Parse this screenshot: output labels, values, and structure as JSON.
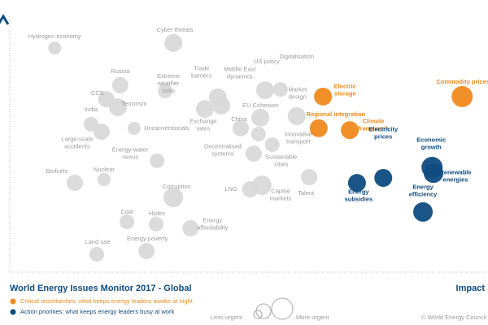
{
  "chart_data": {
    "type": "bubble",
    "title": "World Energy Issues Monitor 2017 - Global",
    "x_label": "Impact",
    "xlim": [
      0,
      100
    ],
    "ylim": [
      0,
      100
    ],
    "series": [
      {
        "color": "#d9d9d9",
        "label_color": "#9b9b9b",
        "labels": [
          "Hydrogen economy",
          "Cyber threats",
          "Russia",
          "CCS",
          "Terrorism",
          "Extreme\nweather\nrisks",
          "India",
          "Unconventionals",
          "Large-scale\naccidents",
          "Trade\nbarriers",
          "Middle East\ndynamics",
          "Exchange\nrates",
          "US policy",
          "Digitalisation",
          "EU Cohesion",
          "Market\ndesign",
          "China",
          "Innovative\ntransport",
          "Decentralised\nsystems",
          "Sustainable\ncities",
          "Energy-water\nnexus",
          "Biofuels",
          "Nuclear",
          "LNG",
          "Capital\nmarkets",
          "Talent",
          "Corruption",
          "Coal",
          "Hydro",
          "Energy\naffordability",
          "Energy poverty",
          "Land use"
        ],
        "x": [
          9.4,
          34.2,
          23.1,
          20.2,
          22.6,
          32.5,
          17.0,
          26.0,
          19.2,
          43.5,
          44.2,
          40.8,
          53.4,
          56.6,
          52.4,
          60.0,
          48.3,
          54.9,
          51.0,
          52.0,
          30.8,
          13.6,
          19.7,
          50.3,
          52.7,
          62.6,
          34.2,
          24.5,
          30.6,
          37.8,
          28.6,
          18.2
        ],
        "y": [
          84.9,
          86.8,
          70.8,
          65.5,
          62.5,
          68.6,
          56.0,
          54.5,
          53.2,
          66.2,
          63.1,
          61.8,
          68.9,
          69.2,
          58.5,
          59.1,
          54.5,
          48.3,
          44.9,
          52.3,
          42.2,
          33.8,
          35.1,
          31.4,
          32.9,
          36.0,
          28.3,
          19.1,
          18.2,
          16.6,
          8.0,
          6.8
        ],
        "size": [
          8,
          11,
          10,
          10,
          11,
          9,
          9,
          8,
          10,
          11,
          11,
          11,
          11,
          9,
          11,
          11,
          10,
          9,
          10,
          9,
          9,
          10,
          8,
          10,
          12,
          10,
          12,
          9,
          9,
          10,
          10,
          9
        ]
      },
      {
        "name": "Critical uncertainties: what keeps energy leaders awake at night",
        "color": "#f08a1e",
        "label_color": "#f08a1e",
        "labels": [
          "Electric\nstorage",
          "Regional integration",
          "Climate\nframework",
          "Commodity prices"
        ],
        "x": [
          65.5,
          64.6,
          71.1,
          94.6
        ],
        "y": [
          66.5,
          54.5,
          53.8,
          66.5
        ],
        "size": [
          11,
          11,
          11,
          13
        ]
      },
      {
        "name": "Action priorities: what keeps energy leaders busy at work",
        "color": "#0f4c81",
        "label_color": "#0f4c81",
        "labels": [
          "Electricity\nprices",
          "Energy\nsubsidies",
          "Economic\ngrowth",
          "Renewable\nenergies",
          "Energy\nefficiency"
        ],
        "x": [
          78.1,
          72.6,
          88.3,
          88.6,
          86.4
        ],
        "y": [
          35.7,
          33.8,
          39.7,
          37.5,
          22.8
        ],
        "size": [
          11,
          11,
          13,
          12,
          12
        ]
      }
    ],
    "size_legend": [
      "Less urgent",
      "More urgent"
    ],
    "source": "© World Energy Council"
  }
}
